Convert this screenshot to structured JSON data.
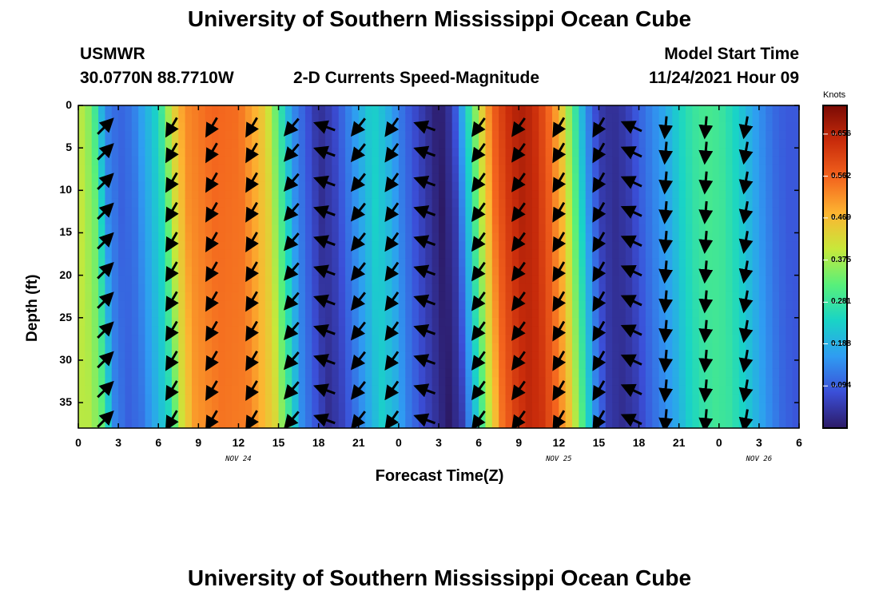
{
  "page": {
    "title": "University of Southern Mississippi Ocean Cube",
    "title_repeat": "University of Southern Mississippi Ocean Cube",
    "station": "USMWR",
    "coords": "30.0770N  88.7710W",
    "subtitle": "2-D Currents Speed-Magnitude",
    "model_start_label": "Model Start Time",
    "model_start_value": "11/24/2021 Hour 09"
  },
  "chart_data": {
    "type": "heatmap",
    "title": "2-D Currents Speed-Magnitude",
    "xlabel": "Forecast Time(Z)",
    "ylabel": "Depth (ft)",
    "x_tick_labels": [
      "0",
      "3",
      "6",
      "9",
      "12",
      "15",
      "18",
      "21",
      "0",
      "3",
      "6",
      "9",
      "12",
      "15",
      "18",
      "21",
      "0",
      "3",
      "6"
    ],
    "x_ticks_hours": [
      0,
      3,
      6,
      9,
      12,
      15,
      18,
      21,
      24,
      27,
      30,
      33,
      36,
      39,
      42,
      45,
      48,
      51,
      54
    ],
    "xlim_hours": [
      0,
      54
    ],
    "day_labels": [
      {
        "text": "NOV 24",
        "hour": 12
      },
      {
        "text": "NOV 25",
        "hour": 36
      },
      {
        "text": "NOV 26",
        "hour": 51
      }
    ],
    "y_tick_labels": [
      "0",
      "5",
      "10",
      "15",
      "20",
      "25",
      "30",
      "35"
    ],
    "y_ticks": [
      0,
      5,
      10,
      15,
      20,
      25,
      30,
      35
    ],
    "ylim": [
      0,
      38
    ],
    "y_inverted": true,
    "colorbar": {
      "label": "Knots",
      "ticks": [
        "0.656",
        "0.562",
        "0.469",
        "0.375",
        "0.281",
        "0.188",
        "0.094"
      ],
      "tick_values": [
        0.656,
        0.562,
        0.469,
        0.375,
        0.281,
        0.188,
        0.094
      ],
      "range": [
        0.0,
        0.72
      ],
      "colors": [
        "#2c1a66",
        "#3b4fd8",
        "#2f9cf2",
        "#19d4c6",
        "#58f07a",
        "#c8e83a",
        "#fdb431",
        "#f3631d",
        "#c92c0b",
        "#7a0a04"
      ]
    },
    "speed_profile": {
      "hours": [
        0,
        1,
        2,
        3,
        4,
        6,
        7,
        8,
        10,
        12,
        14,
        15,
        16,
        17,
        18,
        19,
        20,
        21,
        22,
        23,
        24,
        25,
        26,
        27,
        28,
        29,
        30,
        31,
        32,
        33,
        34,
        35,
        36,
        37,
        38,
        39,
        40,
        41,
        42,
        43,
        44,
        45,
        46,
        47,
        48,
        49,
        50,
        51,
        52,
        53,
        54
      ],
      "knots": [
        0.4,
        0.34,
        0.14,
        0.1,
        0.12,
        0.25,
        0.42,
        0.52,
        0.56,
        0.55,
        0.44,
        0.3,
        0.15,
        0.09,
        0.03,
        0.06,
        0.12,
        0.18,
        0.24,
        0.2,
        0.13,
        0.08,
        0.04,
        0.0,
        0.05,
        0.22,
        0.4,
        0.56,
        0.63,
        0.67,
        0.65,
        0.58,
        0.48,
        0.32,
        0.15,
        0.05,
        0.03,
        0.05,
        0.1,
        0.14,
        0.18,
        0.24,
        0.28,
        0.3,
        0.29,
        0.25,
        0.2,
        0.15,
        0.11,
        0.09,
        0.09
      ],
      "depth_lean": 0.004
    },
    "vectors": {
      "hours": [
        2,
        7,
        10,
        13,
        16,
        18.5,
        21,
        23.5,
        26,
        30,
        33,
        36,
        39,
        41.5,
        44,
        47,
        50
      ],
      "depths": [
        2.5,
        5.5,
        9,
        12.5,
        16,
        19.5,
        23,
        26.5,
        30,
        33.5,
        37
      ],
      "directions_deg": [
        315,
        120,
        120,
        120,
        130,
        200,
        128,
        125,
        200,
        125,
        125,
        120,
        120,
        205,
        95,
        95,
        100
      ],
      "arrow_scale_px": 26
    }
  }
}
